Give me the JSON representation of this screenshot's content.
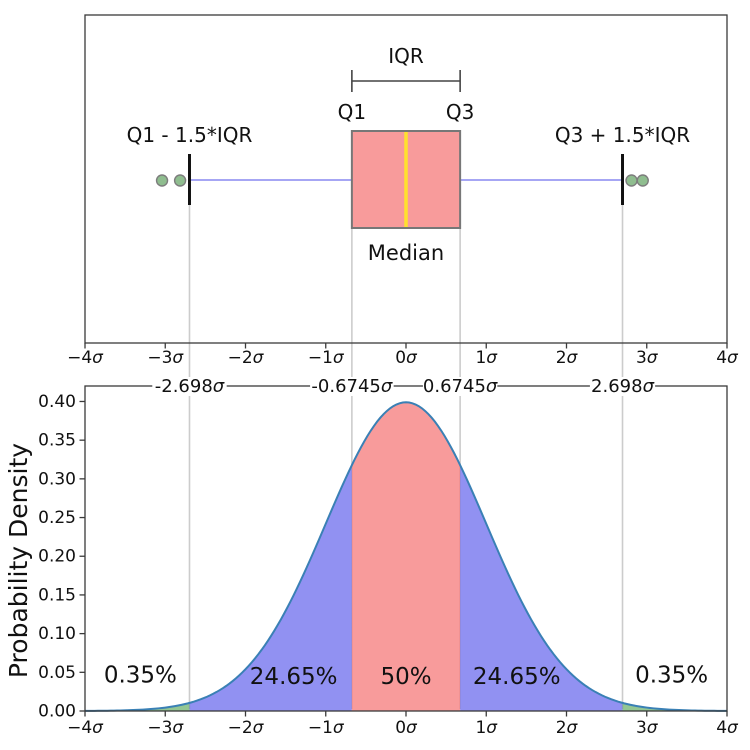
{
  "figure": {
    "background": "#ffffff",
    "text_color": "#111111"
  },
  "chart_data": [
    {
      "type": "boxplot",
      "panel": "boxplot-top",
      "orientation": "horizontal",
      "xlim": [
        -4,
        4
      ],
      "xticks": [
        {
          "v": -4,
          "label": "−4σ"
        },
        {
          "v": -3,
          "label": "−3σ"
        },
        {
          "v": -2,
          "label": "−2σ"
        },
        {
          "v": -1,
          "label": "−1σ"
        },
        {
          "v": 0,
          "label": "0σ"
        },
        {
          "v": 1,
          "label": "1σ"
        },
        {
          "v": 2,
          "label": "2σ"
        },
        {
          "v": 3,
          "label": "3σ"
        },
        {
          "v": 4,
          "label": "4σ"
        }
      ],
      "box": {
        "q1": -0.6745,
        "median": 0,
        "q3": 0.6745,
        "whisker_low": -2.698,
        "whisker_high": 2.698,
        "outliers": [
          -3.04,
          -2.815,
          2.81,
          2.95
        ]
      },
      "annotations": {
        "iqr": "IQR",
        "q1": "Q1",
        "q3": "Q3",
        "median": "Median",
        "low": "Q1 - 1.5*IQR",
        "high": "Q3 + 1.5*IQR"
      },
      "colors": {
        "box_fill": "#f89b9b",
        "box_edge": "#777777",
        "median_line": "#ffe12e",
        "whisker_line": "#8888f0",
        "whisker_cap": "#111111",
        "outlier_fill": "#8fbd8f",
        "outlier_edge": "#7d7d7d",
        "gridline": "#cccccc",
        "spine": "#3a3a3a"
      }
    },
    {
      "type": "area",
      "panel": "pdf-bottom",
      "distribution": "standard-normal-pdf",
      "xlim": [
        -4,
        4
      ],
      "ylim": [
        0,
        0.42
      ],
      "ylabel": "Probability Density",
      "xticks": [
        {
          "v": -4,
          "label": "−4σ"
        },
        {
          "v": -3,
          "label": "−3σ"
        },
        {
          "v": -2,
          "label": "−2σ"
        },
        {
          "v": -1,
          "label": "−1σ"
        },
        {
          "v": 0,
          "label": "0σ"
        },
        {
          "v": 1,
          "label": "1σ"
        },
        {
          "v": 2,
          "label": "2σ"
        },
        {
          "v": 3,
          "label": "3σ"
        },
        {
          "v": 4,
          "label": "4σ"
        }
      ],
      "yticks": [
        {
          "v": 0.0,
          "label": "0.00"
        },
        {
          "v": 0.05,
          "label": "0.05"
        },
        {
          "v": 0.1,
          "label": "0.10"
        },
        {
          "v": 0.15,
          "label": "0.15"
        },
        {
          "v": 0.2,
          "label": "0.20"
        },
        {
          "v": 0.25,
          "label": "0.25"
        },
        {
          "v": 0.3,
          "label": "0.30"
        },
        {
          "v": 0.35,
          "label": "0.35"
        },
        {
          "v": 0.4,
          "label": "0.40"
        }
      ],
      "top_axis_labels": [
        {
          "v": -2.698,
          "label": "-2.698σ"
        },
        {
          "v": -0.6745,
          "label": "-0.6745σ"
        },
        {
          "v": 0.6745,
          "label": "0.6745σ"
        },
        {
          "v": 2.698,
          "label": "2.698σ"
        }
      ],
      "gridlines": [
        -2.698,
        -0.6745,
        0.6745,
        2.698
      ],
      "regions": [
        {
          "from": -4,
          "to": -2.698,
          "fill": "rgba(111,179,111,0.75)",
          "label": "0.35%",
          "label_x": -3.31,
          "label_y": 0.047
        },
        {
          "from": -2.698,
          "to": -0.6745,
          "fill": "rgba(108,108,238,0.75)",
          "label": "24.65%",
          "label_x": -1.4,
          "label_y": 0.045
        },
        {
          "from": -0.6745,
          "to": 0.6745,
          "fill": "rgba(246,122,122,0.75)",
          "label": "50%",
          "label_x": 0,
          "label_y": 0.045
        },
        {
          "from": 0.6745,
          "to": 2.698,
          "fill": "rgba(108,108,238,0.75)",
          "label": "24.65%",
          "label_x": 1.38,
          "label_y": 0.045
        },
        {
          "from": 2.698,
          "to": 4,
          "fill": "rgba(111,179,111,0.75)",
          "label": "0.35%",
          "label_x": 3.31,
          "label_y": 0.047
        }
      ],
      "curve_color": "#3a80b5",
      "colors": {
        "gridline": "#cccccc",
        "spine": "#3a3a3a"
      }
    }
  ]
}
